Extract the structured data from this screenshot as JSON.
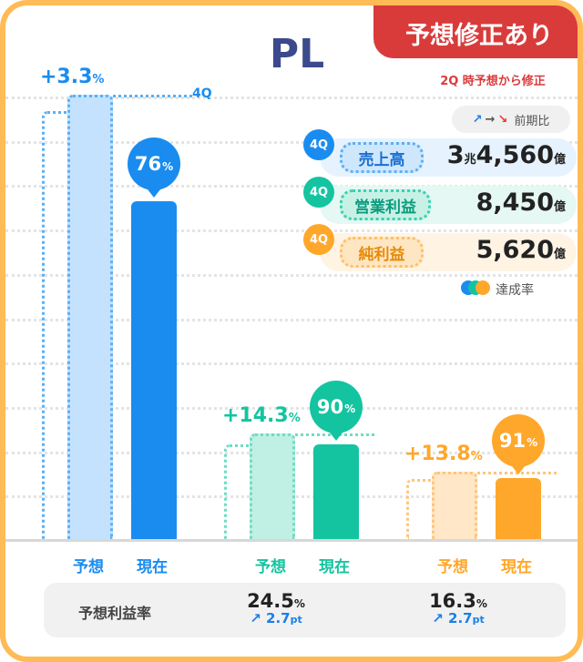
{
  "header": {
    "title": "PL",
    "badge": "予想修正あり",
    "note": "2Q 時予想から修正"
  },
  "colors": {
    "revenue": "#1a8cf0",
    "operating": "#14c4a0",
    "net": "#ffa72b",
    "border": "#ffbb55",
    "badge": "#d93b3b"
  },
  "chart_data": {
    "type": "bar",
    "groups": [
      {
        "metric": "売上高",
        "forecast_change": "+3.3",
        "forecast_change_unit": "%",
        "forecast_label": "予想",
        "current_label": "現在",
        "achievement": 76,
        "achievement_unit": "%",
        "quarter_tag": "4Q"
      },
      {
        "metric": "営業利益",
        "forecast_change": "+14.3",
        "forecast_change_unit": "%",
        "forecast_label": "予想",
        "current_label": "現在",
        "achievement": 90,
        "achievement_unit": "%"
      },
      {
        "metric": "純利益",
        "forecast_change": "+13.8",
        "forecast_change_unit": "%",
        "forecast_label": "予想",
        "current_label": "現在",
        "achievement": 91,
        "achievement_unit": "%"
      }
    ]
  },
  "legend": {
    "arrows": [
      "↗",
      "→",
      "↘"
    ],
    "label": "前期比",
    "rate_label": "達成率"
  },
  "rows": [
    {
      "tag": "4Q",
      "label": "売上高",
      "value_major": "3",
      "unit_major": "兆",
      "value": "4,560",
      "unit": "億"
    },
    {
      "tag": "4Q",
      "label": "営業利益",
      "value": "8,450",
      "unit": "億"
    },
    {
      "tag": "4Q",
      "label": "純利益",
      "value": "5,620",
      "unit": "億"
    }
  ],
  "margin": {
    "label": "予想利益率",
    "items": [
      {
        "value": "24.5",
        "unit": "%",
        "change_arrow": "↗",
        "change": "2.7",
        "change_unit": "pt"
      },
      {
        "value": "16.3",
        "unit": "%",
        "change_arrow": "↗",
        "change": "2.7",
        "change_unit": "pt"
      }
    ]
  }
}
